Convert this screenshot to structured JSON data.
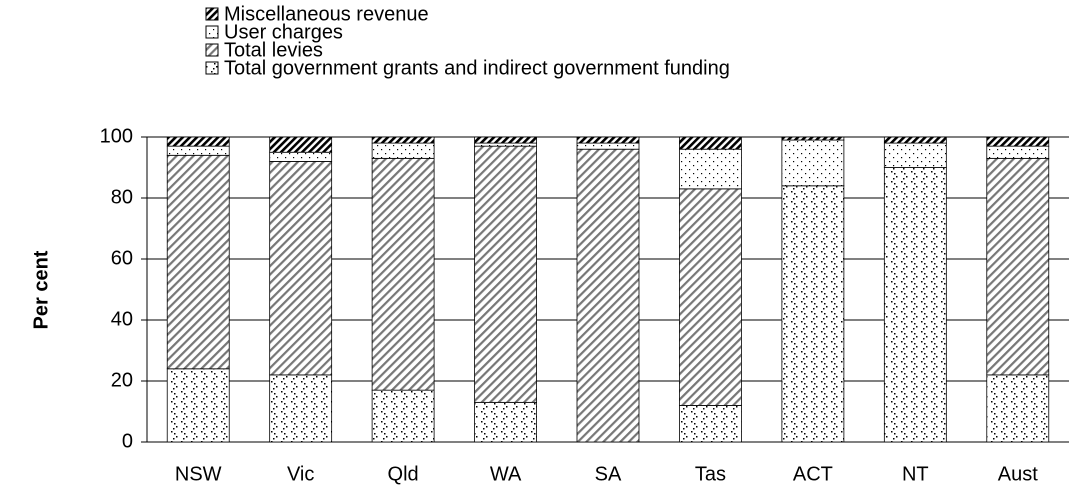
{
  "chart_data": {
    "type": "stacked-bar",
    "y_label": "Per cent",
    "categories": [
      "NSW",
      "Vic",
      "Qld",
      "WA",
      "SA",
      "Tas",
      "ACT",
      "NT",
      "Aust"
    ],
    "series": [
      {
        "name": "Total government grants and indirect government funding",
        "values": [
          24,
          22,
          17,
          13,
          0,
          12,
          84,
          90,
          22
        ]
      },
      {
        "name": "Total levies",
        "values": [
          70,
          70,
          76,
          84,
          96,
          71,
          0,
          0,
          71
        ]
      },
      {
        "name": "User charges",
        "values": [
          3,
          3,
          5,
          1,
          2,
          13,
          15,
          8,
          4
        ]
      },
      {
        "name": "Miscellaneous revenue",
        "values": [
          3,
          5,
          2,
          2,
          2,
          4,
          1,
          2,
          3
        ]
      }
    ],
    "ylim": [
      0,
      100
    ],
    "yticks": [
      0,
      20,
      40,
      60,
      80,
      100
    ],
    "grid": true
  }
}
